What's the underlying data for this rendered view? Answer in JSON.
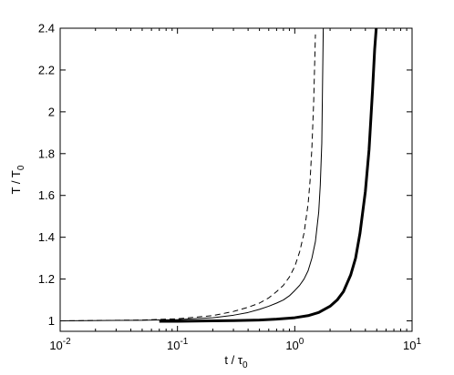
{
  "chart_data": {
    "type": "line",
    "xscale": "log",
    "xlim": [
      0.01,
      10
    ],
    "ylim": [
      0.95,
      2.4
    ],
    "xlabel": {
      "base": "t / τ",
      "sub": "0"
    },
    "ylabel": {
      "base": "T / T",
      "sub": "0"
    },
    "xticks": [
      {
        "value": 0.01,
        "base": "10",
        "exp": "-2"
      },
      {
        "value": 0.1,
        "base": "10",
        "exp": "-1"
      },
      {
        "value": 1,
        "base": "10",
        "exp": "0"
      },
      {
        "value": 10,
        "base": "10",
        "exp": "1"
      }
    ],
    "yticks": [
      {
        "value": 1,
        "label": "1"
      },
      {
        "value": 1.2,
        "label": "1.2"
      },
      {
        "value": 1.4,
        "label": "1.4"
      },
      {
        "value": 1.6,
        "label": "1.6"
      },
      {
        "value": 1.8,
        "label": "1.8"
      },
      {
        "value": 2,
        "label": "2"
      },
      {
        "value": 2.2,
        "label": "2.2"
      },
      {
        "value": 2.4,
        "label": "2.4"
      }
    ],
    "grid": false,
    "legend": "none",
    "series": [
      {
        "style": "dashed",
        "color": "#000000",
        "x": [
          0.01,
          0.05,
          0.1,
          0.2,
          0.3,
          0.4,
          0.5,
          0.6,
          0.7,
          0.8,
          0.9,
          1.0,
          1.1,
          1.2,
          1.3,
          1.35,
          1.4,
          1.45,
          1.5
        ],
        "y": [
          1.0,
          1.004,
          1.01,
          1.025,
          1.045,
          1.065,
          1.085,
          1.11,
          1.14,
          1.17,
          1.21,
          1.26,
          1.33,
          1.42,
          1.56,
          1.67,
          1.83,
          2.05,
          2.37
        ]
      },
      {
        "style": "solid-thin",
        "color": "#000000",
        "x": [
          0.01,
          0.05,
          0.1,
          0.2,
          0.3,
          0.4,
          0.5,
          0.6,
          0.7,
          0.8,
          0.9,
          1.0,
          1.1,
          1.2,
          1.3,
          1.4,
          1.5,
          1.6,
          1.65,
          1.7,
          1.75
        ],
        "y": [
          1.0,
          1.003,
          1.006,
          1.015,
          1.027,
          1.04,
          1.055,
          1.07,
          1.085,
          1.1,
          1.12,
          1.145,
          1.17,
          1.2,
          1.24,
          1.3,
          1.38,
          1.52,
          1.65,
          1.85,
          2.4
        ]
      },
      {
        "style": "solid-thick",
        "color": "#000000",
        "x": [
          0.07,
          0.1,
          0.2,
          0.3,
          0.5,
          0.7,
          1.0,
          1.3,
          1.6,
          2.0,
          2.3,
          2.6,
          3.0,
          3.3,
          3.6,
          4.0,
          4.3,
          4.6,
          4.8,
          4.95
        ],
        "y": [
          0.998,
          0.998,
          1.0,
          1.001,
          1.004,
          1.008,
          1.015,
          1.025,
          1.04,
          1.07,
          1.1,
          1.14,
          1.22,
          1.3,
          1.42,
          1.62,
          1.82,
          2.1,
          2.3,
          2.4
        ]
      }
    ]
  }
}
